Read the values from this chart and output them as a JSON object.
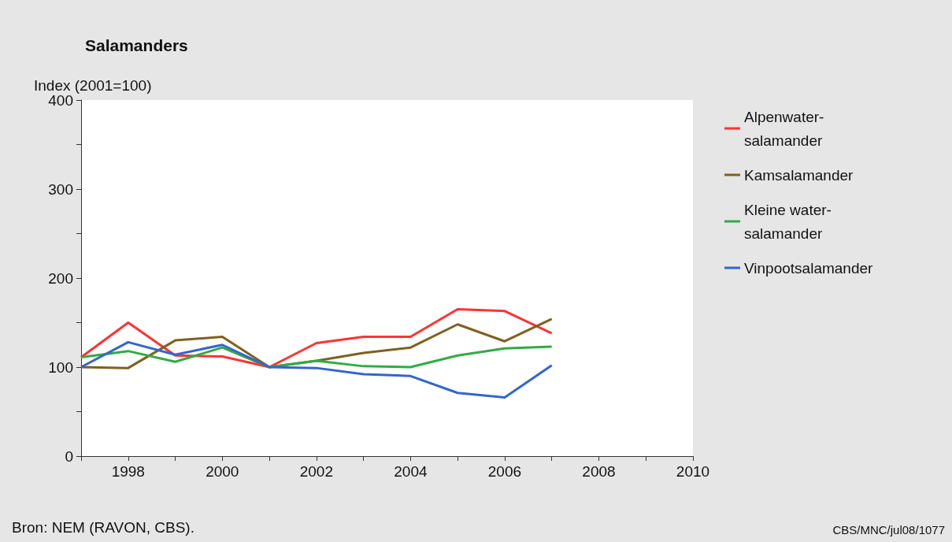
{
  "chart_data": {
    "type": "line",
    "title": "Salamanders",
    "ylabel": "Index (2001=100)",
    "x": [
      1997,
      1998,
      1999,
      2000,
      2001,
      2002,
      2003,
      2004,
      2005,
      2006,
      2007
    ],
    "series": [
      {
        "name": "Alpenwater-salamander",
        "color": "#ff3333",
        "values": [
          111,
          150,
          113,
          112,
          100,
          127,
          134,
          134,
          165,
          163,
          138
        ]
      },
      {
        "name": "Kamsalamander",
        "color": "#806020",
        "values": [
          100,
          99,
          130,
          134,
          100,
          107,
          116,
          122,
          148,
          129,
          154
        ]
      },
      {
        "name": "Kleine water-salamander",
        "color": "#33aa44",
        "values": [
          111,
          118,
          106,
          122,
          100,
          107,
          101,
          100,
          113,
          121,
          123
        ]
      },
      {
        "name": "Vinpootsalamander",
        "color": "#3366cc",
        "values": [
          100,
          128,
          114,
          125,
          100,
          99,
          92,
          90,
          71,
          66,
          102
        ]
      }
    ],
    "xlim": [
      1997,
      2010
    ],
    "xticks": [
      {
        "value": 1997,
        "label": null
      },
      1998,
      {
        "value": 1999,
        "label": null
      },
      2000,
      {
        "value": 2001,
        "label": null
      },
      2002,
      {
        "value": 2003,
        "label": null
      },
      2004,
      {
        "value": 2005,
        "label": null
      },
      2006,
      {
        "value": 2007,
        "label": null
      },
      2008,
      {
        "value": 2009,
        "label": null
      },
      2010
    ],
    "ylim": [
      0,
      400
    ],
    "yticks": [
      0,
      {
        "value": 50,
        "label": null
      },
      100,
      {
        "value": 150,
        "label": null
      },
      200,
      {
        "value": 250,
        "label": null
      },
      300,
      {
        "value": 350,
        "label": null
      },
      400
    ],
    "grid": false,
    "legend": "top right",
    "marker": "none",
    "line_style": "solid",
    "annotations": [
      "Bron: NEM (RAVON, CBS).",
      "CBS/MNC/jul08/1077"
    ]
  }
}
